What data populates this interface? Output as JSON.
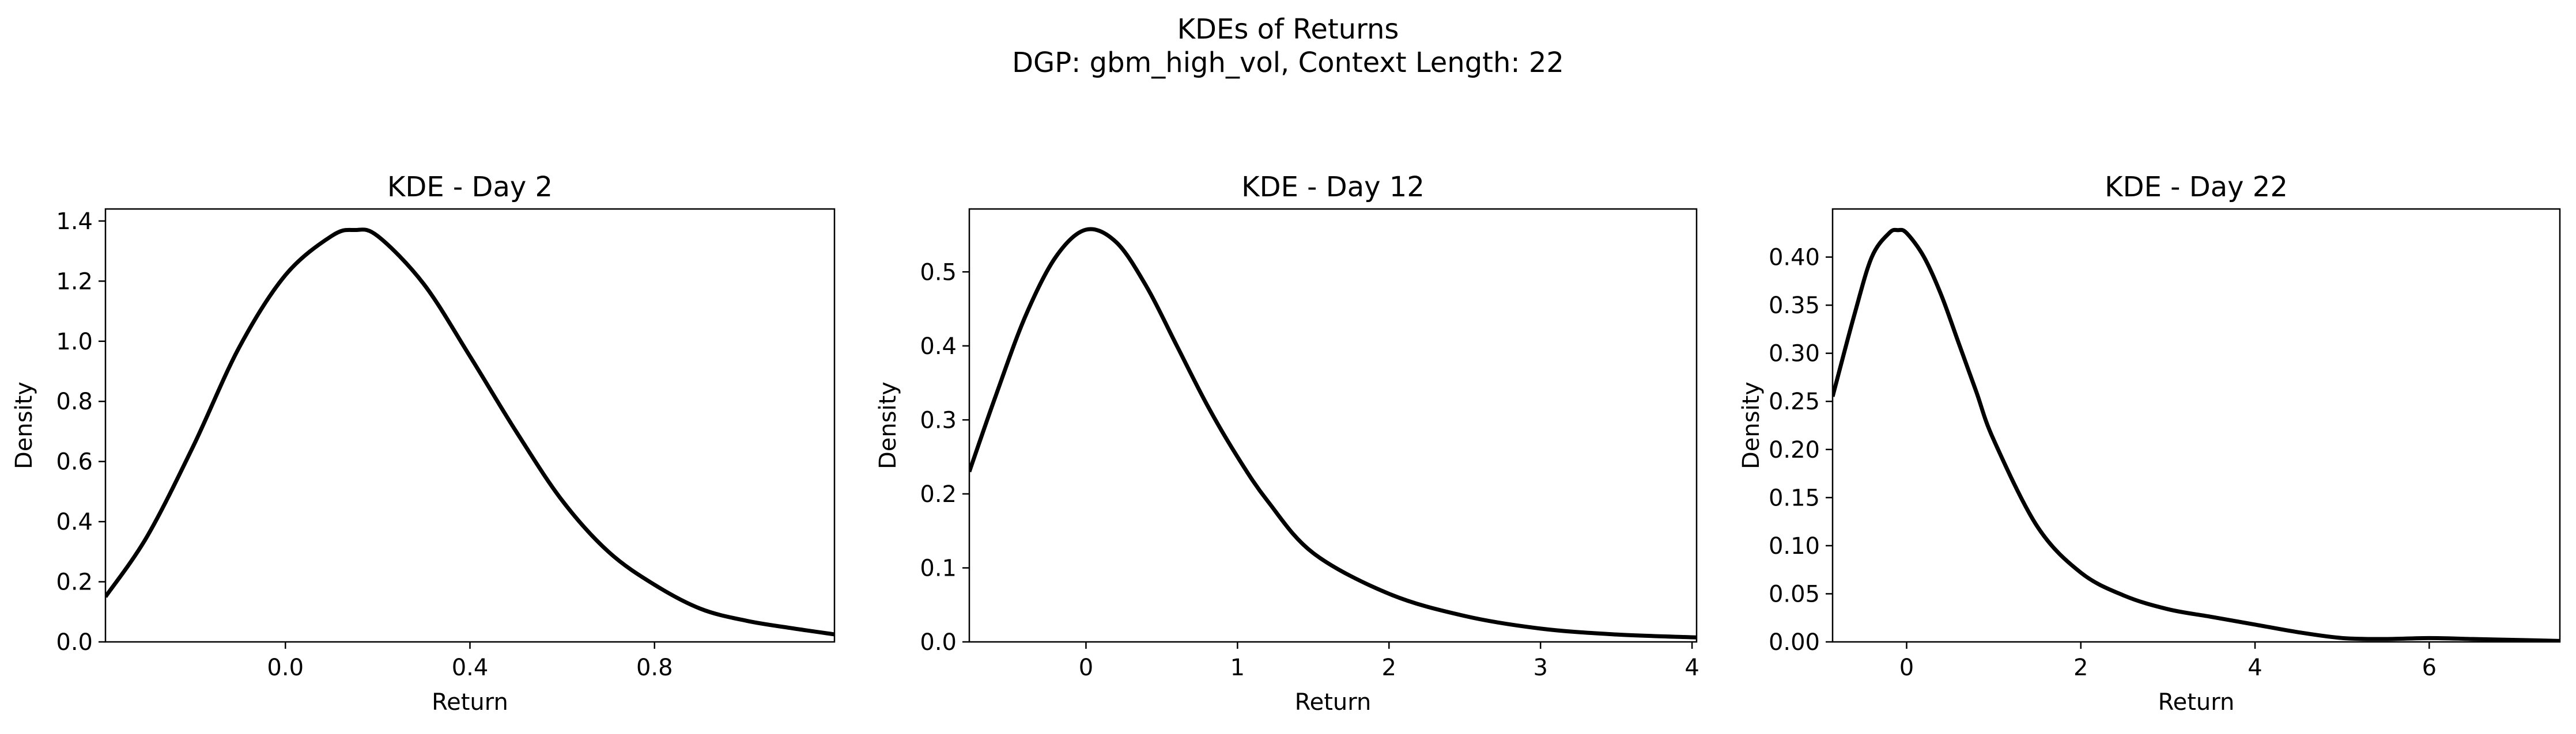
{
  "figure": {
    "title_line1": "KDEs of Returns",
    "title_line2": "DGP: gbm_high_vol, Context Length: 22"
  },
  "chart_data": [
    {
      "type": "line",
      "title": "KDE - Day 2",
      "xlabel": "Return",
      "ylabel": "Density",
      "xlim": [
        -0.39,
        1.19
      ],
      "ylim": [
        0,
        1.44
      ],
      "xticks": [
        0.0,
        0.4,
        0.8
      ],
      "xtick_labels": [
        "0.0",
        "0.4",
        "0.8"
      ],
      "yticks": [
        0.0,
        0.2,
        0.4,
        0.6,
        0.8,
        1.0,
        1.2,
        1.4
      ],
      "ytick_labels": [
        "0.0",
        "0.2",
        "0.4",
        "0.6",
        "0.8",
        "1.0",
        "1.2",
        "1.4"
      ],
      "grid": false,
      "series": [
        {
          "color": "#000000",
          "x": [
            -0.39,
            -0.3,
            -0.2,
            -0.1,
            0.0,
            0.1,
            0.15,
            0.2,
            0.3,
            0.4,
            0.5,
            0.6,
            0.7,
            0.8,
            0.9,
            1.0,
            1.1,
            1.19
          ],
          "y": [
            0.15,
            0.35,
            0.65,
            0.98,
            1.22,
            1.35,
            1.37,
            1.35,
            1.19,
            0.95,
            0.7,
            0.47,
            0.3,
            0.19,
            0.11,
            0.07,
            0.045,
            0.025
          ]
        }
      ]
    },
    {
      "type": "line",
      "title": "KDE - Day 12",
      "xlabel": "Return",
      "ylabel": "Density",
      "xlim": [
        -0.77,
        4.03
      ],
      "ylim": [
        0,
        0.585
      ],
      "xticks": [
        0,
        1,
        2,
        3,
        4
      ],
      "xtick_labels": [
        "0",
        "1",
        "2",
        "3",
        "4"
      ],
      "yticks": [
        0.0,
        0.1,
        0.2,
        0.3,
        0.4,
        0.5
      ],
      "ytick_labels": [
        "0.0",
        "0.1",
        "0.2",
        "0.3",
        "0.4",
        "0.5"
      ],
      "grid": false,
      "series": [
        {
          "color": "#000000",
          "x": [
            -0.77,
            -0.6,
            -0.4,
            -0.2,
            0.0,
            0.2,
            0.4,
            0.6,
            0.8,
            1.0,
            1.2,
            1.5,
            2.0,
            2.5,
            3.0,
            3.5,
            4.03
          ],
          "y": [
            0.23,
            0.33,
            0.44,
            0.52,
            0.557,
            0.54,
            0.48,
            0.4,
            0.32,
            0.25,
            0.19,
            0.12,
            0.065,
            0.035,
            0.018,
            0.01,
            0.006
          ]
        }
      ]
    },
    {
      "type": "line",
      "title": "KDE - Day 22",
      "xlabel": "Return",
      "ylabel": "Density",
      "xlim": [
        -0.85,
        7.5
      ],
      "ylim": [
        0,
        0.45
      ],
      "xticks": [
        0,
        2,
        4,
        6
      ],
      "xtick_labels": [
        "0",
        "2",
        "4",
        "6"
      ],
      "yticks": [
        0.0,
        0.05,
        0.1,
        0.15,
        0.2,
        0.25,
        0.3,
        0.35,
        0.4
      ],
      "ytick_labels": [
        "0.00",
        "0.05",
        "0.10",
        "0.15",
        "0.20",
        "0.25",
        "0.30",
        "0.35",
        "0.40"
      ],
      "grid": false,
      "series": [
        {
          "color": "#000000",
          "x": [
            -0.85,
            -0.6,
            -0.4,
            -0.2,
            -0.1,
            0.0,
            0.2,
            0.4,
            0.6,
            0.8,
            1.0,
            1.5,
            2.0,
            2.5,
            3.0,
            3.5,
            4.0,
            4.5,
            5.0,
            5.5,
            6.0,
            6.5,
            7.0,
            7.5
          ],
          "y": [
            0.255,
            0.34,
            0.4,
            0.425,
            0.428,
            0.425,
            0.4,
            0.36,
            0.31,
            0.26,
            0.21,
            0.12,
            0.072,
            0.048,
            0.034,
            0.026,
            0.018,
            0.01,
            0.004,
            0.003,
            0.004,
            0.003,
            0.002,
            0.001
          ]
        }
      ]
    }
  ]
}
